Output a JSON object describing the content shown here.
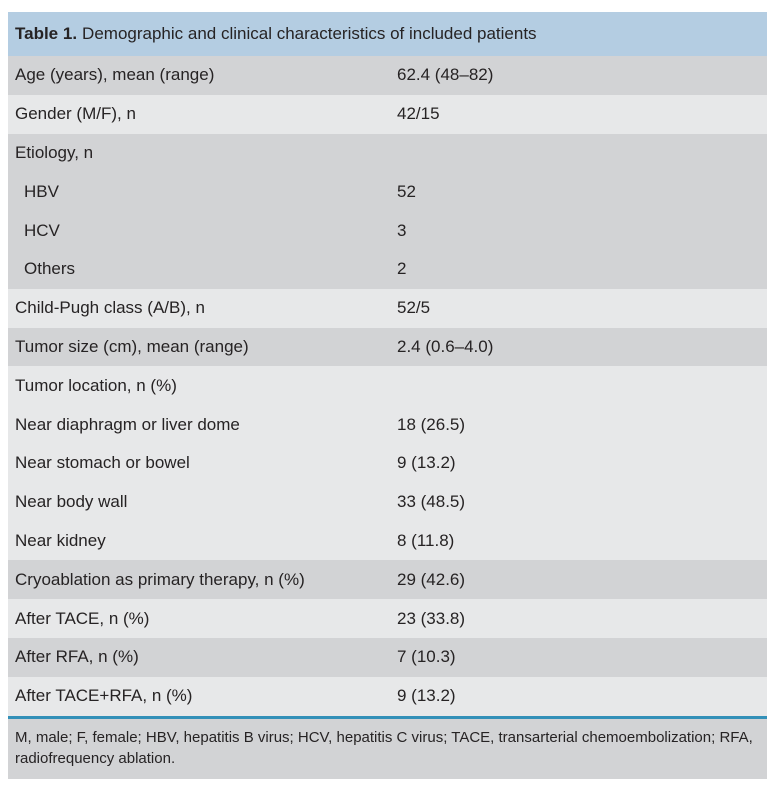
{
  "table": {
    "title_label": "Table 1.",
    "title_text": "Demographic and clinical characteristics of included patients",
    "rows": [
      {
        "label": "Age (years), mean (range)",
        "value": "62.4 (48–82)",
        "shade": "dark",
        "indent": false
      },
      {
        "label": "Gender (M/F), n",
        "value": "42/15",
        "shade": "light",
        "indent": false
      },
      {
        "label": "Etiology, n",
        "value": "",
        "shade": "dark",
        "indent": false
      },
      {
        "label": "HBV",
        "value": "52",
        "shade": "dark",
        "indent": true
      },
      {
        "label": "HCV",
        "value": "3",
        "shade": "dark",
        "indent": true
      },
      {
        "label": "Others",
        "value": "2",
        "shade": "dark",
        "indent": true
      },
      {
        "label": "Child-Pugh class (A/B), n",
        "value": "52/5",
        "shade": "light",
        "indent": false
      },
      {
        "label": "Tumor size (cm), mean (range)",
        "value": "2.4 (0.6–4.0)",
        "shade": "dark",
        "indent": false
      },
      {
        "label": "Tumor location, n (%)",
        "value": "",
        "shade": "light",
        "indent": false
      },
      {
        "label": "Near diaphragm or liver dome",
        "value": "18 (26.5)",
        "shade": "light",
        "indent": false
      },
      {
        "label": "Near stomach or bowel",
        "value": "9 (13.2)",
        "shade": "light",
        "indent": false
      },
      {
        "label": "Near body wall",
        "value": "33 (48.5)",
        "shade": "light",
        "indent": false
      },
      {
        "label": "Near kidney",
        "value": "8 (11.8)",
        "shade": "light",
        "indent": false
      },
      {
        "label": "Cryoablation as primary therapy, n (%)",
        "value": "29 (42.6)",
        "shade": "dark",
        "indent": false
      },
      {
        "label": "After TACE, n (%)",
        "value": "23 (33.8)",
        "shade": "light",
        "indent": false
      },
      {
        "label": "After RFA, n (%)",
        "value": "7 (10.3)",
        "shade": "dark",
        "indent": false
      },
      {
        "label": "After TACE+RFA, n (%)",
        "value": "9 (13.2)",
        "shade": "light",
        "indent": false
      }
    ],
    "footnote": "M, male; F, female; HBV, hepatitis B virus; HCV, hepatitis C virus; TACE, transarterial chemoembolization; RFA, radiofrequency ablation.",
    "colors": {
      "title_bg": "#b4cde2",
      "row_dark": "#d2d3d5",
      "row_light": "#e7e8e9",
      "rule": "#3390b8",
      "text": "#262324"
    }
  }
}
